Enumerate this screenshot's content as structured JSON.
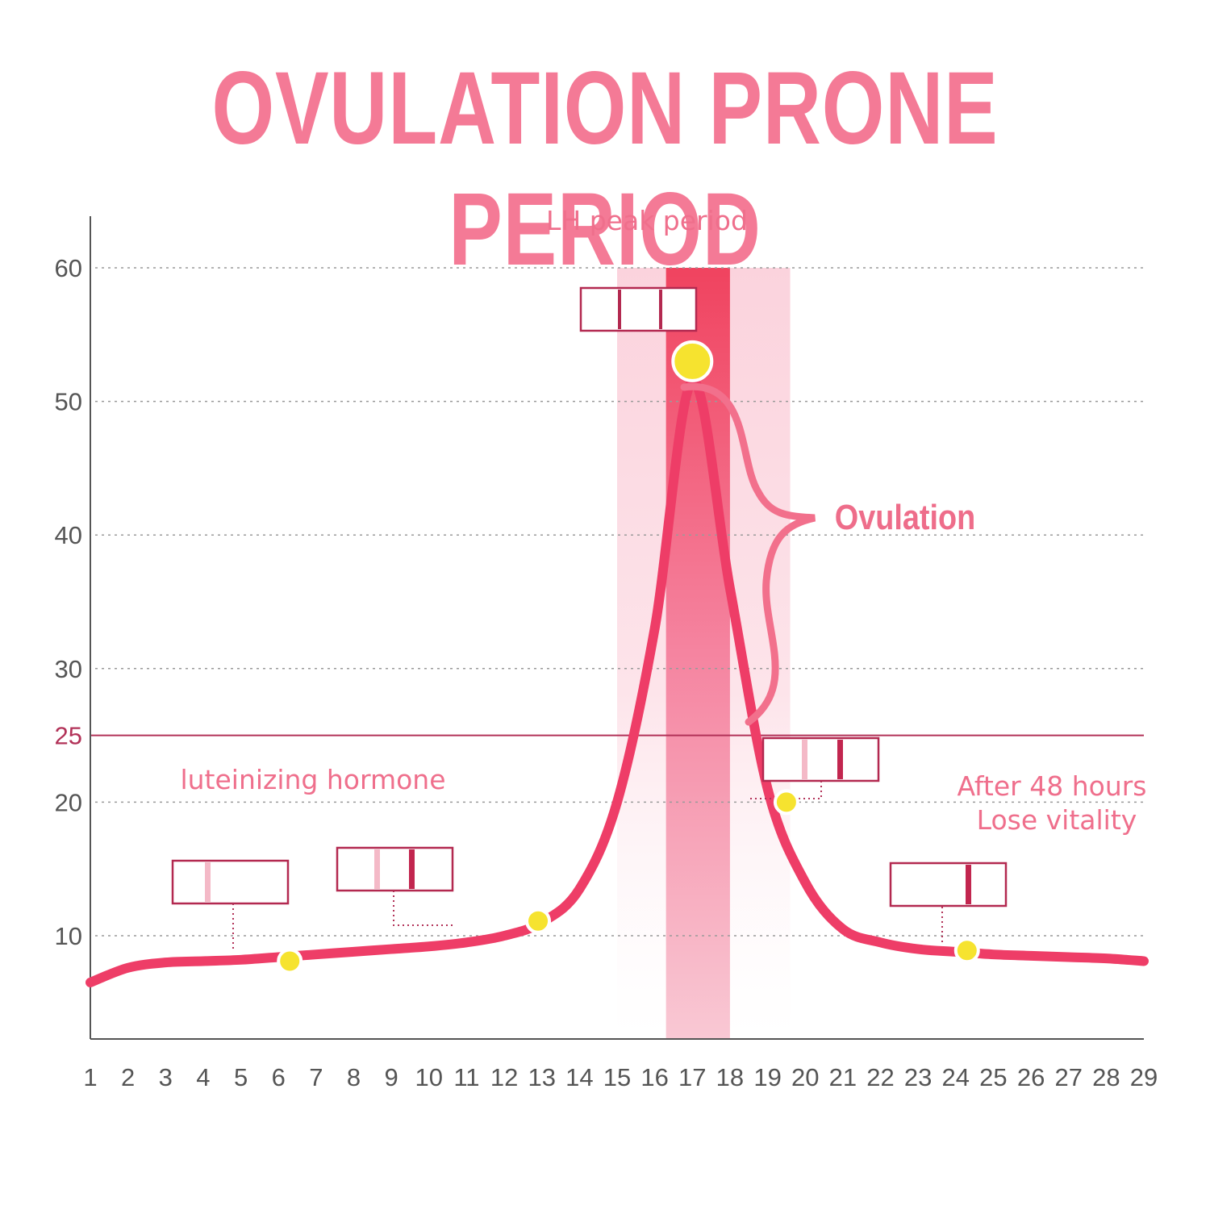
{
  "title": "OVULATION PRONE PERIOD",
  "chart_data": {
    "type": "line",
    "title": "OVULATION PRONE PERIOD",
    "xlabel": "",
    "ylabel": "",
    "x_ticks": [
      "1",
      "2",
      "3",
      "4",
      "5",
      "6",
      "7",
      "8",
      "9",
      "10",
      "11",
      "12",
      "13",
      "14",
      "15",
      "16",
      "17",
      "18",
      "19",
      "20",
      "21",
      "22",
      "23",
      "24",
      "25",
      "26",
      "27",
      "28",
      "29"
    ],
    "y_ticks": [
      10,
      20,
      30,
      40,
      50,
      60
    ],
    "threshold": {
      "value": 25,
      "label": "25"
    },
    "xlim": [
      1,
      29
    ],
    "ylim": [
      2,
      64
    ],
    "series": [
      {
        "name": "luteinizing hormone",
        "x": [
          1,
          2,
          3,
          4,
          5,
          6,
          7,
          8,
          9,
          10,
          11,
          12,
          13,
          14,
          15,
          16,
          17,
          18,
          19,
          20,
          21,
          22,
          23,
          24,
          25,
          26,
          27,
          28,
          29
        ],
        "y": [
          6.5,
          7.6,
          8.0,
          8.1,
          8.2,
          8.4,
          8.6,
          8.8,
          9.0,
          9.2,
          9.5,
          10.0,
          11.0,
          13.5,
          20.0,
          33.0,
          51.5,
          36.0,
          21.0,
          14.0,
          10.5,
          9.5,
          9.0,
          8.8,
          8.6,
          8.5,
          8.4,
          8.3,
          8.1
        ]
      }
    ],
    "markers": [
      {
        "x": 6.3,
        "y": 8.1,
        "test_label": "faint"
      },
      {
        "x": 12.9,
        "y": 11.1,
        "test_label": "faint+control"
      },
      {
        "x": 17.0,
        "y": 53.0,
        "test_label": "peak"
      },
      {
        "x": 19.5,
        "y": 20.0,
        "test_label": "fading"
      },
      {
        "x": 24.3,
        "y": 8.9,
        "test_label": "control"
      }
    ],
    "bands": [
      {
        "name": "LH peak period",
        "x": [
          15.0,
          19.6
        ]
      },
      {
        "name": "peak",
        "x": [
          16.3,
          18.0
        ]
      }
    ],
    "annotations": {
      "lh_peak": "LH peak period",
      "series_label": "luteinizing hormone",
      "ovulation": "Ovulation",
      "after_line1": "After 48 hours",
      "after_line2": "Lose vitality"
    }
  },
  "colors": {
    "curve": "#ee3d67",
    "band_light": "#fbd8e1",
    "band_dark": "#f2546f",
    "title": "#f47a96",
    "threshold": "#b23258",
    "marker": "#f6e32f",
    "test_border": "#b32950",
    "brace": "#f2708c"
  }
}
